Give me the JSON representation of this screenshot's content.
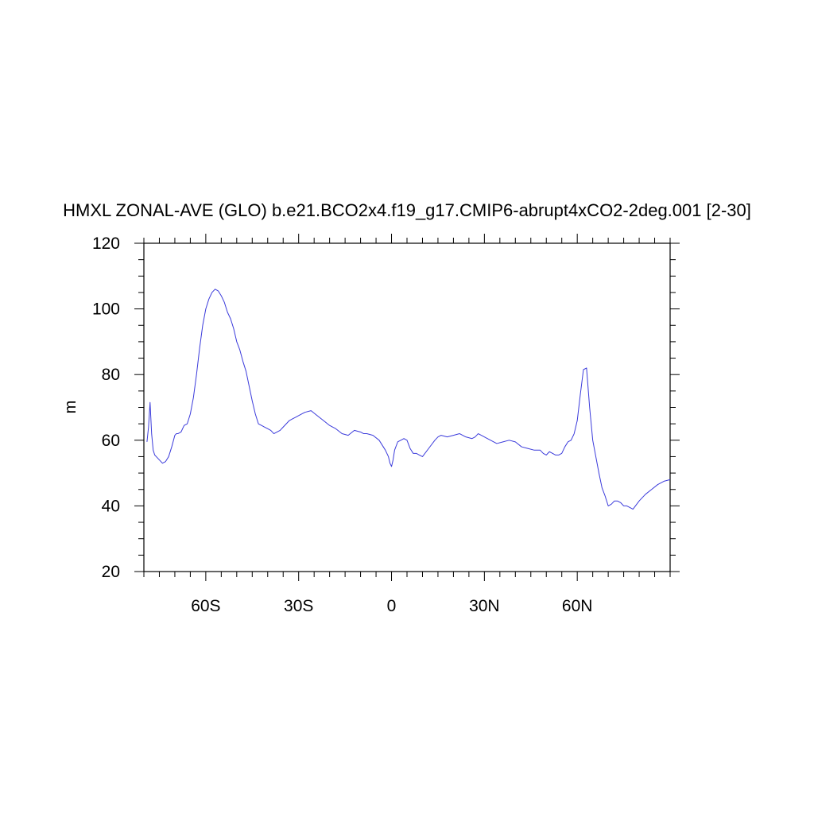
{
  "chart_data": {
    "type": "line",
    "title": "HMXL ZONAL-AVE (GLO) b.e21.BCO2x4.f19_g17.CMIP6-abrupt4xCO2-2deg.001 [2-30]",
    "xlabel": "",
    "ylabel": "m",
    "xlim": [
      -80,
      90
    ],
    "ylim": [
      20,
      120
    ],
    "grid": false,
    "line_color": "#3b3bdb",
    "x_ticks": [
      {
        "value": -60,
        "label": "60S"
      },
      {
        "value": -30,
        "label": "30S"
      },
      {
        "value": 0,
        "label": "0"
      },
      {
        "value": 30,
        "label": "30N"
      },
      {
        "value": 60,
        "label": "60N"
      }
    ],
    "y_ticks": [
      {
        "value": 20,
        "label": "20"
      },
      {
        "value": 40,
        "label": "40"
      },
      {
        "value": 60,
        "label": "60"
      },
      {
        "value": 80,
        "label": "80"
      },
      {
        "value": 100,
        "label": "100"
      },
      {
        "value": 120,
        "label": "120"
      }
    ],
    "series": [
      {
        "x": [
          -79.0,
          -78.5,
          -78.0,
          -77.5,
          -77.0,
          -76.5,
          -76.0,
          -75.0,
          -74.0,
          -73.0,
          -72.0,
          -71.0,
          -70.0,
          -69.5,
          -69.0,
          -68.0,
          -67.0,
          -66.0,
          -65.0,
          -64.0,
          -63.0,
          -62.0,
          -61.0,
          -60.0,
          -59.0,
          -58.0,
          -57.0,
          -56.0,
          -55.0,
          -54.0,
          -53.0,
          -52.0,
          -51.0,
          -50.0,
          -49.0,
          -48.0,
          -47.0,
          -46.0,
          -45.0,
          -44.0,
          -43.0,
          -42.0,
          -41.0,
          -40.0,
          -39.0,
          -38.0,
          -37.0,
          -36.0,
          -35.0,
          -34.0,
          -33.0,
          -32.0,
          -31.0,
          -30.0,
          -28.0,
          -26.0,
          -24.0,
          -22.0,
          -20.0,
          -18.0,
          -16.0,
          -14.0,
          -12.0,
          -10.0,
          -9.0,
          -8.0,
          -6.0,
          -4.0,
          -2.0,
          -1.0,
          -0.5,
          0.0,
          0.5,
          1.0,
          2.0,
          3.0,
          4.0,
          5.0,
          6.0,
          7.0,
          8.0,
          9.0,
          10.0,
          12.0,
          14.0,
          15.0,
          16.0,
          18.0,
          20.0,
          22.0,
          24.0,
          26.0,
          27.0,
          28.0,
          29.0,
          30.0,
          32.0,
          34.0,
          36.0,
          38.0,
          40.0,
          42.0,
          44.0,
          46.0,
          48.0,
          49.0,
          50.0,
          51.0,
          52.0,
          53.0,
          54.0,
          55.0,
          56.0,
          57.0,
          58.0,
          59.0,
          60.0,
          61.0,
          62.0,
          63.0,
          64.0,
          65.0,
          66.0,
          67.0,
          68.0,
          69.0,
          70.0,
          71.0,
          72.0,
          73.0,
          74.0,
          75.0,
          76.0,
          77.0,
          78.0,
          80.0,
          82.0,
          84.0,
          86.0,
          88.0,
          90.0
        ],
        "y": [
          59.5,
          64.0,
          71.5,
          62.0,
          57.0,
          55.5,
          55.0,
          54.0,
          53.0,
          53.5,
          55.0,
          58.0,
          61.5,
          62.0,
          62.0,
          62.5,
          64.5,
          65.0,
          68.0,
          73.0,
          80.0,
          88.0,
          95.0,
          100.0,
          103.0,
          105.0,
          106.0,
          105.5,
          104.0,
          102.0,
          99.0,
          97.0,
          94.0,
          90.0,
          87.5,
          84.0,
          81.0,
          76.5,
          72.0,
          68.0,
          65.0,
          64.5,
          64.0,
          63.5,
          63.0,
          62.0,
          62.5,
          63.0,
          64.0,
          65.0,
          66.0,
          66.5,
          67.0,
          67.5,
          68.5,
          69.0,
          67.5,
          66.0,
          64.5,
          63.5,
          62.0,
          61.5,
          63.0,
          62.5,
          62.0,
          62.0,
          61.5,
          60.0,
          57.0,
          55.0,
          53.0,
          52.0,
          54.0,
          57.0,
          59.5,
          60.0,
          60.5,
          60.0,
          57.5,
          56.0,
          56.0,
          55.5,
          55.0,
          57.5,
          60.0,
          61.0,
          61.5,
          61.0,
          61.5,
          62.0,
          61.0,
          60.5,
          61.0,
          62.0,
          61.5,
          61.0,
          60.0,
          59.0,
          59.5,
          60.0,
          59.5,
          58.0,
          57.5,
          57.0,
          57.0,
          56.0,
          55.5,
          56.5,
          56.0,
          55.5,
          55.5,
          56.0,
          58.0,
          59.5,
          60.0,
          62.0,
          66.0,
          74.0,
          81.5,
          82.0,
          70.0,
          60.0,
          55.0,
          50.0,
          45.5,
          43.0,
          40.0,
          40.5,
          41.5,
          41.5,
          41.0,
          40.0,
          40.0,
          39.5,
          39.0,
          41.5,
          43.5,
          45.0,
          46.5,
          47.5,
          48.0
        ]
      }
    ]
  }
}
